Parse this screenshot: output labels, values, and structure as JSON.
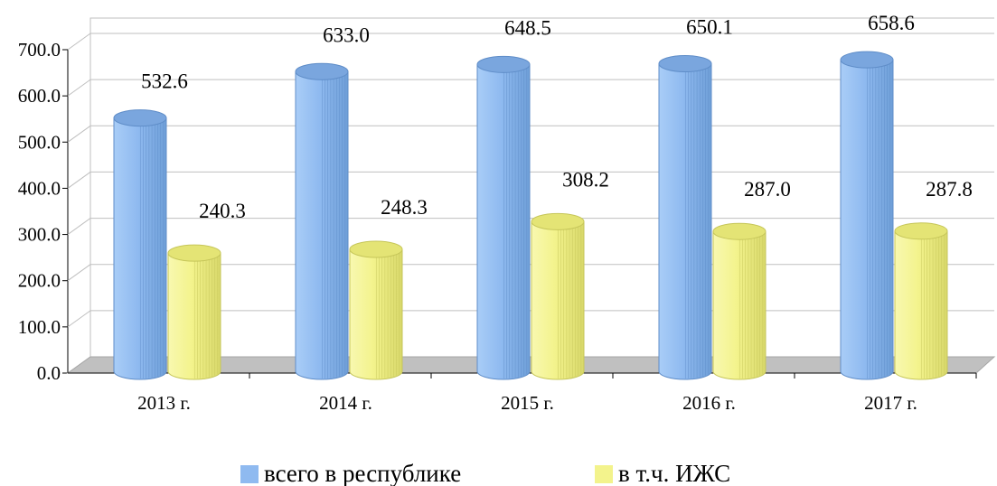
{
  "chart_data": {
    "type": "bar",
    "categories": [
      "2013 г.",
      "2014 г.",
      "2015 г.",
      "2016 г.",
      "2017 г."
    ],
    "series": [
      {
        "name": "всего в республике",
        "values": [
          532.6,
          633.0,
          648.5,
          650.1,
          658.6
        ],
        "color": "#8fbaf0"
      },
      {
        "name": "в т.ч. ИЖС",
        "values": [
          240.3,
          248.3,
          308.2,
          287.0,
          287.8
        ],
        "color": "#f3f38c"
      }
    ],
    "data_labels": [
      [
        "532.6",
        "633.0",
        "648.5",
        "650.1",
        "658.6"
      ],
      [
        "240.3",
        "248.3",
        "308.2",
        "287.0",
        "287.8"
      ]
    ],
    "y_ticks": [
      "0.0",
      "100.0",
      "200.0",
      "300.0",
      "400.0",
      "500.0",
      "600.0",
      "700.0"
    ],
    "ylim": [
      0,
      700
    ],
    "grid": true,
    "legend_position": "bottom",
    "title": "",
    "xlabel": "",
    "ylabel": ""
  }
}
